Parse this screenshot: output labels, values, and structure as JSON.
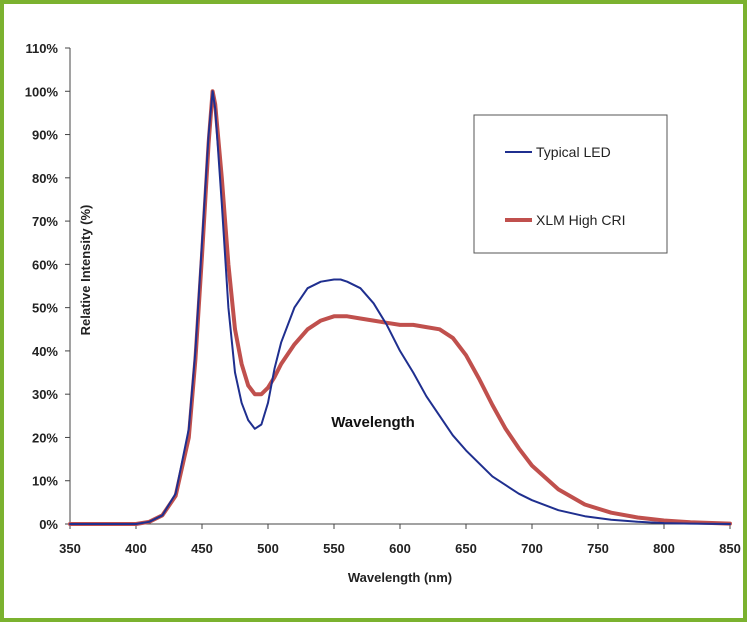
{
  "chart_data": {
    "type": "line",
    "title": "",
    "xlabel": "Wavelength (nm)",
    "ylabel": "Relative Intensity (%)",
    "annotation": "Wavelength",
    "xlim": [
      350,
      850
    ],
    "ylim": [
      0,
      110
    ],
    "x_ticks": [
      350,
      400,
      450,
      500,
      550,
      600,
      650,
      700,
      750,
      800,
      850
    ],
    "x_tick_labels": [
      "350",
      "400",
      "450",
      "500",
      "550",
      "600",
      "650",
      "700",
      "750",
      "800",
      "850"
    ],
    "y_ticks": [
      0,
      10,
      20,
      30,
      40,
      50,
      60,
      70,
      80,
      90,
      100,
      110
    ],
    "y_tick_labels": [
      "0%",
      "10%",
      "20%",
      "30%",
      "40%",
      "50%",
      "60%",
      "70%",
      "80%",
      "90%",
      "100%",
      "110%"
    ],
    "grid": false,
    "legend": {
      "placement": "top-right"
    },
    "series": [
      {
        "name": "Typical LED",
        "color": "#1f2f8f",
        "x": [
          350,
          400,
          410,
          420,
          430,
          440,
          445,
          450,
          455,
          458,
          460,
          465,
          470,
          475,
          480,
          485,
          490,
          495,
          500,
          505,
          510,
          520,
          530,
          540,
          550,
          555,
          560,
          570,
          580,
          590,
          600,
          610,
          620,
          630,
          640,
          650,
          660,
          670,
          680,
          690,
          700,
          720,
          740,
          760,
          780,
          800,
          820,
          850
        ],
        "y": [
          0,
          0,
          0.5,
          2,
          7,
          22,
          40,
          65,
          90,
          100,
          96,
          74,
          50,
          35,
          28,
          24,
          22,
          23,
          28,
          36,
          42,
          50,
          54.5,
          56,
          56.5,
          56.5,
          56,
          54.5,
          51,
          46,
          40,
          35,
          29.5,
          25,
          20.5,
          17,
          14,
          11,
          9,
          7,
          5.5,
          3.2,
          1.8,
          1,
          0.5,
          0.2,
          0.1,
          0
        ]
      },
      {
        "name": "XLM High CRI",
        "color": "#c0504d",
        "x": [
          350,
          400,
          410,
          420,
          430,
          440,
          445,
          450,
          455,
          458,
          460,
          465,
          470,
          475,
          480,
          485,
          490,
          495,
          500,
          505,
          510,
          520,
          530,
          540,
          550,
          555,
          560,
          570,
          580,
          590,
          600,
          610,
          620,
          630,
          640,
          650,
          660,
          670,
          680,
          690,
          700,
          720,
          740,
          760,
          780,
          800,
          820,
          850
        ],
        "y": [
          0,
          0,
          0.5,
          2,
          6.5,
          20,
          38,
          62,
          88,
          100,
          97,
          80,
          60,
          45,
          37,
          32,
          30,
          30,
          31.5,
          34,
          37,
          41.5,
          45,
          47,
          48,
          48,
          48,
          47.5,
          47,
          46.5,
          46,
          46,
          45.5,
          45,
          43,
          39,
          33.5,
          27.5,
          22,
          17.5,
          13.5,
          8,
          4.5,
          2.6,
          1.5,
          0.8,
          0.4,
          0.1
        ]
      }
    ]
  }
}
